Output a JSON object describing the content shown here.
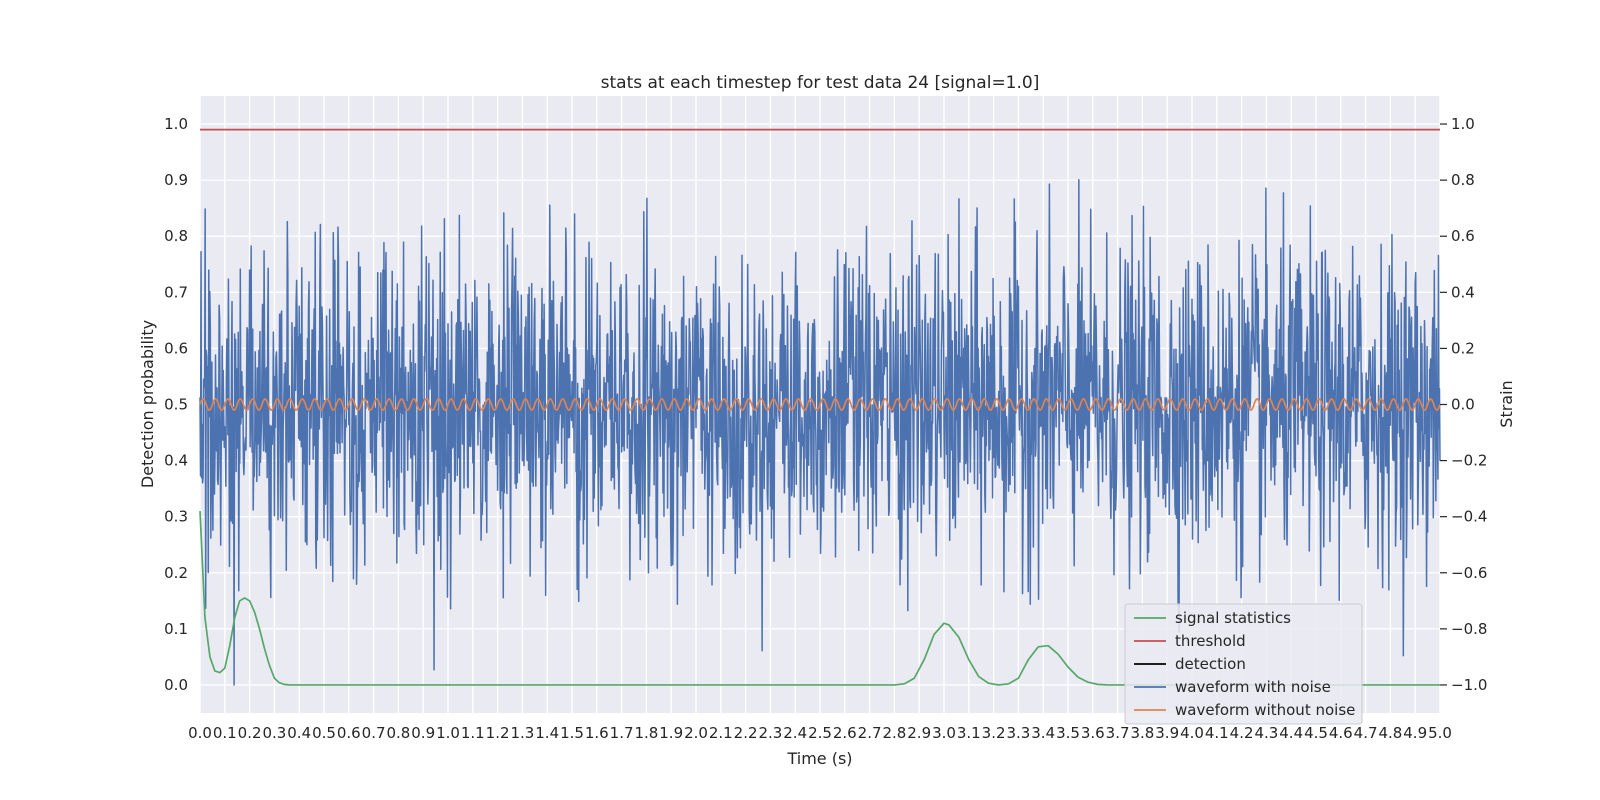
{
  "chart_data": {
    "type": "line",
    "title": "stats at each timestep for test data 24 [signal=1.0]",
    "xlabel": "Time (s)",
    "ylabel": "Detection probability",
    "y2label": "Strain",
    "xlim": [
      0.0,
      5.0
    ],
    "ylim": [
      -0.05,
      1.05
    ],
    "y2lim": [
      -1.1,
      1.1
    ],
    "xticks": [
      0.0,
      0.1,
      0.2,
      0.3,
      0.4,
      0.5,
      0.6,
      0.7,
      0.8,
      0.9,
      1.0,
      1.1,
      1.2,
      1.3,
      1.4,
      1.5,
      1.6,
      1.7,
      1.8,
      1.9,
      2.0,
      2.1,
      2.2,
      2.3,
      2.4,
      2.5,
      2.6,
      2.7,
      2.8,
      2.9,
      3.0,
      3.1,
      3.2,
      3.3,
      3.4,
      3.5,
      3.6,
      3.7,
      3.8,
      3.9,
      4.0,
      4.1,
      4.2,
      4.3,
      4.4,
      4.5,
      4.6,
      4.7,
      4.8,
      4.9,
      5.0
    ],
    "xtick_labels": [
      "0.0",
      "0.1",
      "0.2",
      "0.3",
      "0.4",
      "0.5",
      "0.6",
      "0.7",
      "0.8",
      "0.9",
      "1.0",
      "1.1",
      "1.2",
      "1.3",
      "1.4",
      "1.5",
      "1.6",
      "1.7",
      "1.8",
      "1.9",
      "2.0",
      "2.1",
      "2.2",
      "2.3",
      "2.4",
      "2.5",
      "2.6",
      "2.7",
      "2.8",
      "2.9",
      "3.0",
      "3.1",
      "3.2",
      "3.3",
      "3.4",
      "3.5",
      "3.6",
      "3.7",
      "3.8",
      "3.9",
      "4.0",
      "4.1",
      "4.2",
      "4.3",
      "4.4",
      "4.5",
      "4.6",
      "4.7",
      "4.8",
      "4.9",
      "5.0"
    ],
    "yticks": [
      0.0,
      0.1,
      0.2,
      0.3,
      0.4,
      0.5,
      0.6,
      0.7,
      0.8,
      0.9,
      1.0
    ],
    "ytick_labels": [
      "0.0",
      "0.1",
      "0.2",
      "0.3",
      "0.4",
      "0.5",
      "0.6",
      "0.7",
      "0.8",
      "0.9",
      "1.0"
    ],
    "y2ticks": [
      -1.0,
      -0.8,
      -0.6,
      -0.4,
      -0.2,
      0.0,
      0.2,
      0.4,
      0.6,
      0.8,
      1.0
    ],
    "y2tick_labels": [
      "−1.0",
      "−0.8",
      "−0.6",
      "−0.4",
      "−0.2",
      "0.0",
      "0.2",
      "0.4",
      "0.6",
      "0.8",
      "1.0"
    ],
    "grid": true,
    "legend_position": "lower-right",
    "colors": {
      "plot_bg": "#eaeaf2",
      "grid": "#ffffff",
      "signal_statistics": "#55a868",
      "threshold": "#c44e52",
      "detection": "#000000",
      "waveform_with_noise": "#4c72b0",
      "waveform_without_noise": "#dd8452"
    },
    "legend": [
      {
        "name": "signal statistics",
        "color": "#55a868"
      },
      {
        "name": "threshold",
        "color": "#c44e52"
      },
      {
        "name": "detection",
        "color": "#000000"
      },
      {
        "name": "waveform with noise",
        "color": "#4c72b0"
      },
      {
        "name": "waveform without noise",
        "color": "#dd8452"
      }
    ],
    "series": [
      {
        "name": "signal statistics",
        "axis": "left",
        "x": [
          0.0,
          0.02,
          0.04,
          0.06,
          0.08,
          0.1,
          0.12,
          0.14,
          0.16,
          0.18,
          0.2,
          0.22,
          0.24,
          0.26,
          0.28,
          0.3,
          0.32,
          0.34,
          0.36,
          0.4,
          0.6,
          1.0,
          1.5,
          2.0,
          2.5,
          2.7,
          2.8,
          2.84,
          2.88,
          2.92,
          2.96,
          3.0,
          3.02,
          3.06,
          3.1,
          3.14,
          3.18,
          3.22,
          3.26,
          3.3,
          3.34,
          3.38,
          3.42,
          3.46,
          3.5,
          3.54,
          3.58,
          3.62,
          3.66,
          3.7,
          3.8,
          3.9,
          4.0,
          4.5,
          5.0
        ],
        "y": [
          0.31,
          0.12,
          0.05,
          0.025,
          0.022,
          0.03,
          0.07,
          0.12,
          0.15,
          0.155,
          0.15,
          0.13,
          0.1,
          0.065,
          0.035,
          0.012,
          0.004,
          0.001,
          0.0,
          0.0,
          0.0,
          0.0,
          0.0,
          0.0,
          0.0,
          0.0,
          0.0,
          0.002,
          0.012,
          0.045,
          0.09,
          0.11,
          0.107,
          0.085,
          0.045,
          0.015,
          0.003,
          0.0,
          0.002,
          0.012,
          0.045,
          0.068,
          0.07,
          0.055,
          0.032,
          0.014,
          0.005,
          0.001,
          0.0,
          0.0,
          0.0,
          0.0,
          0.0,
          0.0,
          0.0
        ]
      },
      {
        "name": "threshold",
        "axis": "left",
        "x": [
          0.0,
          5.0
        ],
        "y": [
          0.99,
          0.99
        ]
      },
      {
        "name": "waveform with noise",
        "axis": "right",
        "type": "noise",
        "x_range": [
          0.0,
          5.0
        ],
        "sigma": 0.27,
        "range": [
          -1.0,
          1.0
        ]
      },
      {
        "name": "waveform without noise",
        "axis": "right",
        "type": "sine",
        "x_range": [
          0.0,
          5.0
        ],
        "amplitude": 0.02,
        "cycles": 100
      }
    ]
  }
}
